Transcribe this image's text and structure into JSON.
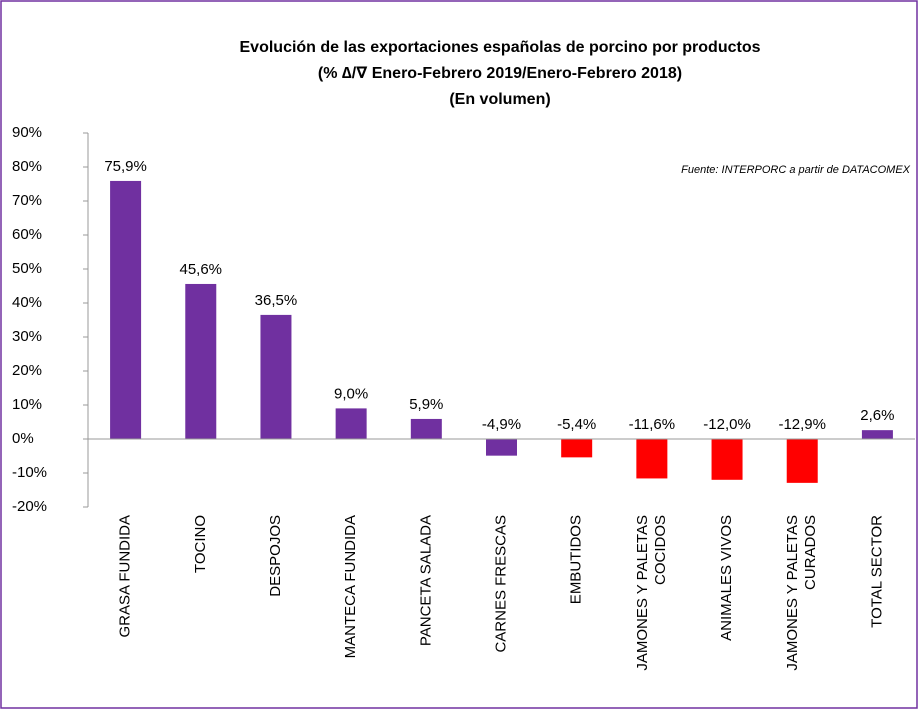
{
  "chart_data": {
    "type": "bar",
    "title": "Evolución de las exportaciones españolas de porcino por productos",
    "subtitle": "(% ∆/∇ Enero-Febrero 2019/Enero-Febrero 2018)",
    "subtitle2": "(En volumen)",
    "source": "Fuente: INTERPORC  a partir de DATACOMEX",
    "categories": [
      "GRASA FUNDIDA",
      "TOCINO",
      "DESPOJOS",
      "MANTECA FUNDIDA",
      "PANCETA SALADA",
      "CARNES FRESCAS",
      "EMBUTIDOS",
      "JAMONES Y PALETAS\nCOCIDOS",
      "ANIMALES VIVOS",
      "JAMONES Y PALETAS\nCURADOS",
      "TOTAL SECTOR"
    ],
    "values": [
      75.9,
      45.6,
      36.5,
      9.0,
      5.9,
      -4.9,
      -5.4,
      -11.6,
      -12.0,
      -12.9,
      2.6
    ],
    "value_labels": [
      "75,9%",
      "45,6%",
      "36,5%",
      "9,0%",
      "5,9%",
      "-4,9%",
      "-5,4%",
      "-11,6%",
      "-12,0%",
      "-12,9%",
      "2,6%"
    ],
    "colors": [
      "#7030a0",
      "#7030a0",
      "#7030a0",
      "#7030a0",
      "#7030a0",
      "#7030a0",
      "#ff0000",
      "#ff0000",
      "#ff0000",
      "#ff0000",
      "#7030a0"
    ],
    "ylim": [
      -20,
      90
    ],
    "yticks": [
      {
        "value": -20,
        "label": "-20%"
      },
      {
        "value": -10,
        "label": "-10%"
      },
      {
        "value": 0,
        "label": "0%"
      },
      {
        "value": 10,
        "label": "10%"
      },
      {
        "value": 20,
        "label": "20%"
      },
      {
        "value": 30,
        "label": "30%"
      },
      {
        "value": 40,
        "label": "40%"
      },
      {
        "value": 50,
        "label": "50%"
      },
      {
        "value": 60,
        "label": "60%"
      },
      {
        "value": 70,
        "label": "70%"
      },
      {
        "value": 80,
        "label": "80%"
      },
      {
        "value": 90,
        "label": "90%"
      }
    ],
    "grid": false
  }
}
